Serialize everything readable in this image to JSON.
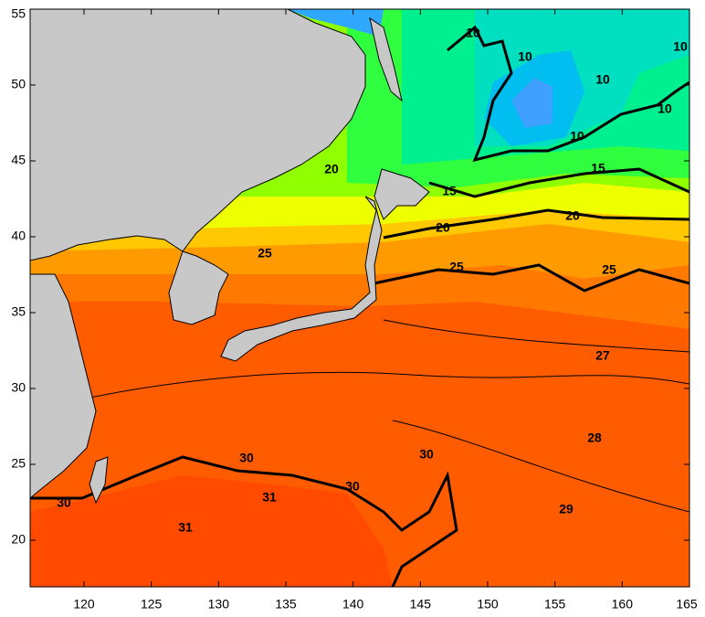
{
  "axes": {
    "x_ticks": [
      120,
      125,
      130,
      135,
      140,
      145,
      150,
      155,
      160,
      165
    ],
    "y_ticks": [
      20,
      25,
      30,
      35,
      40,
      45,
      50,
      55
    ]
  },
  "contour_labels": [
    10,
    10,
    10,
    10,
    10,
    10,
    15,
    15,
    20,
    20,
    20,
    25,
    25,
    25,
    27,
    28,
    29,
    30,
    30,
    30,
    30,
    31,
    31
  ]
}
